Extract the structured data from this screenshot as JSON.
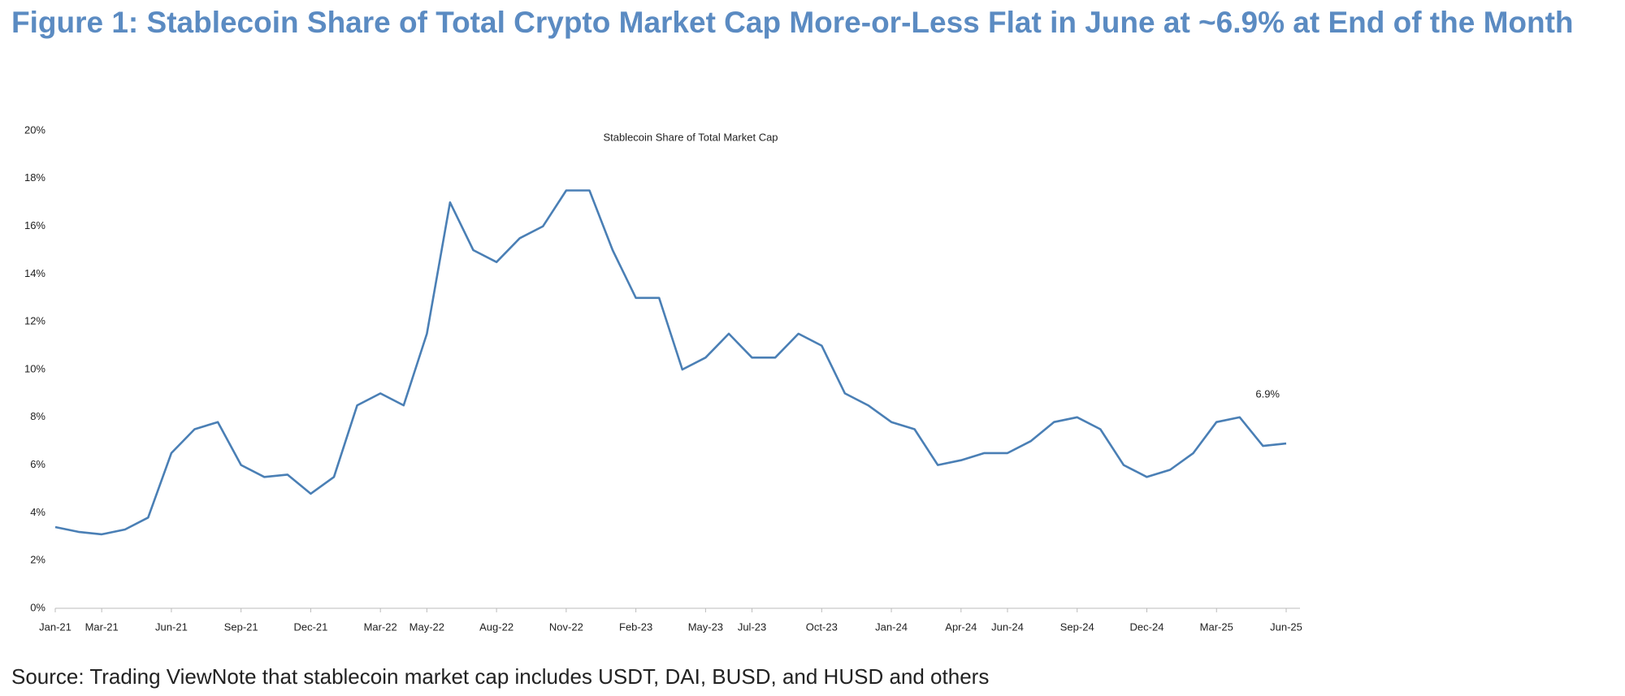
{
  "chart_data": {
    "type": "line",
    "title": "Figure 1: Stablecoin Share of Total Crypto Market Cap More-or-Less Flat in June at ~6.9% at End of the Month",
    "subtitle": "Stablecoin Share of Total Market Cap",
    "source": "Source: Trading ViewNote that stablecoin market cap includes USDT, DAI, BUSD, and HUSD and others",
    "annotation": "6.9%",
    "x": [
      "2021-01",
      "2021-02",
      "2021-03",
      "2021-04",
      "2021-05",
      "2021-06",
      "2021-07",
      "2021-08",
      "2021-09",
      "2021-10",
      "2021-11",
      "2021-12",
      "2022-01",
      "2022-02",
      "2022-03",
      "2022-04",
      "2022-05",
      "2022-06",
      "2022-07",
      "2022-08",
      "2022-09",
      "2022-10",
      "2022-11",
      "2022-12",
      "2023-01",
      "2023-02",
      "2023-03",
      "2023-04",
      "2023-05",
      "2023-06",
      "2023-07",
      "2023-08",
      "2023-09",
      "2023-10",
      "2023-11",
      "2023-12",
      "2024-01",
      "2024-02",
      "2024-03",
      "2024-04",
      "2024-05",
      "2024-06",
      "2024-07",
      "2024-08",
      "2024-09",
      "2024-10",
      "2024-11",
      "2024-12",
      "2025-01",
      "2025-02",
      "2025-03",
      "2025-04",
      "2025-05",
      "2025-06"
    ],
    "series": [
      {
        "name": "Stablecoin Share of Total Market Cap",
        "color": "#4a7fb5",
        "values": [
          3.4,
          3.2,
          3.1,
          3.3,
          3.8,
          6.5,
          7.5,
          7.8,
          6.0,
          5.5,
          5.6,
          4.8,
          5.5,
          8.5,
          9.0,
          8.5,
          11.5,
          17.0,
          15.0,
          14.5,
          15.5,
          16.0,
          17.5,
          17.5,
          15.0,
          13.0,
          13.0,
          10.0,
          10.5,
          11.5,
          10.5,
          10.5,
          11.5,
          11.0,
          9.0,
          8.5,
          7.8,
          7.5,
          6.0,
          6.2,
          6.5,
          6.5,
          7.0,
          7.8,
          8.0,
          7.5,
          6.0,
          5.5,
          5.8,
          6.5,
          7.8,
          8.0,
          6.8,
          6.9
        ]
      }
    ],
    "ylim": [
      0,
      20
    ],
    "yticks": [
      {
        "value": 0,
        "label": "0%"
      },
      {
        "value": 2,
        "label": "2%"
      },
      {
        "value": 4,
        "label": "4%"
      },
      {
        "value": 6,
        "label": "6%"
      },
      {
        "value": 8,
        "label": "8%"
      },
      {
        "value": 10,
        "label": "10%"
      },
      {
        "value": 12,
        "label": "12%"
      },
      {
        "value": 14,
        "label": "14%"
      },
      {
        "value": 16,
        "label": "16%"
      },
      {
        "value": 18,
        "label": "18%"
      },
      {
        "value": 20,
        "label": "20%"
      }
    ],
    "xticks": [
      {
        "value": "2021-01",
        "label": "Jan-21"
      },
      {
        "value": "2021-03",
        "label": "Mar-21"
      },
      {
        "value": "2021-06",
        "label": "Jun-21"
      },
      {
        "value": "2021-09",
        "label": "Sep-21"
      },
      {
        "value": "2021-12",
        "label": "Dec-21"
      },
      {
        "value": "2022-03",
        "label": "Mar-22"
      },
      {
        "value": "2022-05",
        "label": "May-22"
      },
      {
        "value": "2022-08",
        "label": "Aug-22"
      },
      {
        "value": "2022-11",
        "label": "Nov-22"
      },
      {
        "value": "2023-02",
        "label": "Feb-23"
      },
      {
        "value": "2023-05",
        "label": "May-23"
      },
      {
        "value": "2023-07",
        "label": "Jul-23"
      },
      {
        "value": "2023-10",
        "label": "Oct-23"
      },
      {
        "value": "2024-01",
        "label": "Jan-24"
      },
      {
        "value": "2024-04",
        "label": "Apr-24"
      },
      {
        "value": "2024-06",
        "label": "Jun-24"
      },
      {
        "value": "2024-09",
        "label": "Sep-24"
      },
      {
        "value": "2024-12",
        "label": "Dec-24"
      },
      {
        "value": "2025-03",
        "label": "Mar-25"
      },
      {
        "value": "2025-06",
        "label": "Jun-25"
      }
    ],
    "grid": false
  }
}
